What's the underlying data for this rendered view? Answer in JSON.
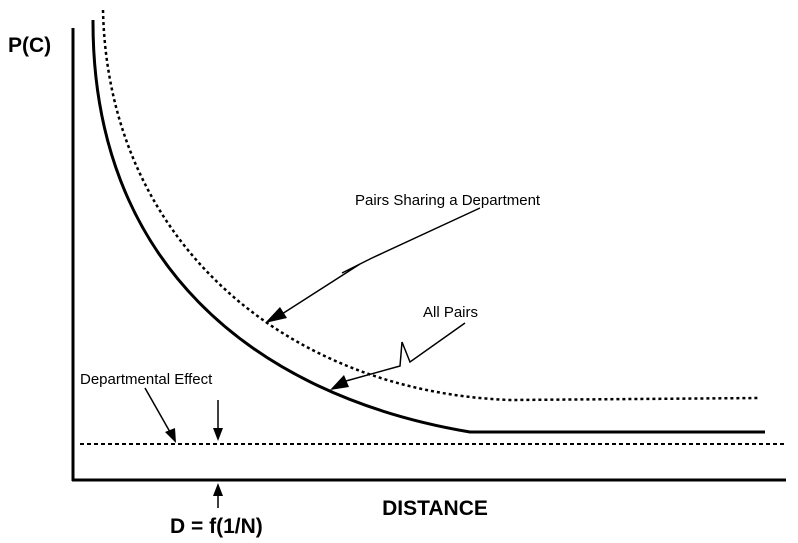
{
  "y_axis_label": "P(C)",
  "x_axis_label": "DISTANCE",
  "curves": [
    {
      "label": "Pairs Sharing a Department"
    },
    {
      "label": "All Pairs"
    }
  ],
  "baseline": {
    "label": "Departmental Effect"
  },
  "marker": {
    "label": "D = f(1/N)"
  }
}
